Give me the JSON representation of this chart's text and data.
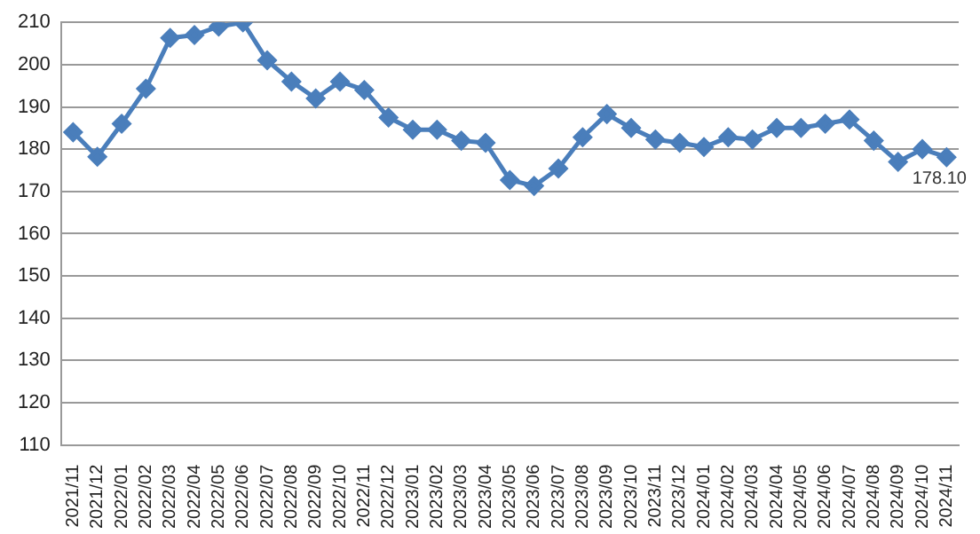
{
  "chart_data": {
    "type": "line",
    "categories": [
      "2021/11",
      "2021/12",
      "2022/01",
      "2022/02",
      "2022/03",
      "2022/04",
      "2022/05",
      "2022/06",
      "2022/07",
      "2022/08",
      "2022/09",
      "2022/10",
      "2022/11",
      "2022/12",
      "2023/01",
      "2023/02",
      "2023/03",
      "2023/04",
      "2023/05",
      "2023/06",
      "2023/07",
      "2023/08",
      "2023/09",
      "2023/10",
      "2023/11",
      "2023/12",
      "2024/01",
      "2024/02",
      "2024/03",
      "2024/04",
      "2024/05",
      "2024/06",
      "2024/07",
      "2024/08",
      "2024/09",
      "2024/10",
      "2024/11"
    ],
    "series": [
      {
        "color": "#4a7ebb",
        "values": [
          184,
          178.2,
          186,
          194.3,
          206.3,
          207,
          209,
          210,
          201,
          196,
          192,
          196,
          194,
          187.5,
          184.6,
          184.6,
          182,
          181.5,
          172.7,
          171.3,
          175.4,
          182.8,
          188.3,
          185,
          182.3,
          181.5,
          180.5,
          182.8,
          182.3,
          185,
          185,
          186,
          187,
          182,
          177,
          180,
          178.1
        ],
        "value_labels": [
          null,
          null,
          null,
          null,
          null,
          null,
          null,
          null,
          null,
          null,
          null,
          null,
          null,
          null,
          null,
          null,
          null,
          null,
          null,
          null,
          null,
          null,
          null,
          null,
          null,
          null,
          null,
          null,
          null,
          null,
          null,
          null,
          null,
          null,
          null,
          null,
          "178.10"
        ]
      }
    ],
    "ylim": [
      110,
      210
    ],
    "yticks": [
      110,
      120,
      130,
      140,
      150,
      160,
      170,
      180,
      190,
      200,
      210
    ],
    "grid": "y",
    "marker": "diamond",
    "line_style": "solid",
    "legend": false
  }
}
